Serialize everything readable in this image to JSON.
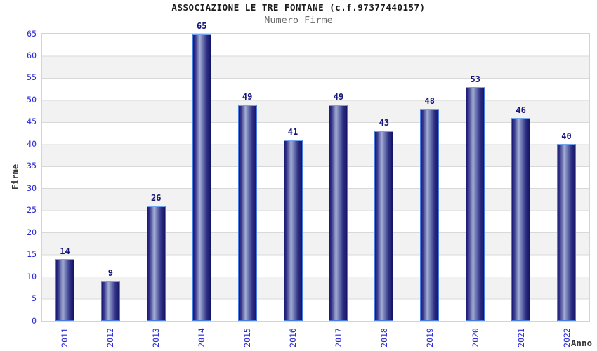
{
  "chart_data": {
    "type": "bar",
    "title": "ASSOCIAZIONE LE TRE FONTANE (c.f.97377440157)",
    "subtitle": "Numero Firme",
    "xlabel": "Anno",
    "ylabel": "Firme",
    "categories": [
      "2011",
      "2012",
      "2013",
      "2014",
      "2015",
      "2016",
      "2017",
      "2018",
      "2019",
      "2020",
      "2021",
      "2022"
    ],
    "values": [
      14,
      9,
      26,
      65,
      49,
      41,
      49,
      43,
      48,
      53,
      46,
      40
    ],
    "ylim": [
      0,
      65
    ],
    "ytick_step": 5,
    "yticks": [
      0,
      5,
      10,
      15,
      20,
      25,
      30,
      35,
      40,
      45,
      50,
      55,
      60,
      65
    ],
    "grid": "horizontal gridlines every 5 units with alternating white/gray bands",
    "legend": "none",
    "value_labels": "above each bar",
    "x_tick_rotation_deg": 90,
    "colors": {
      "title_text": "#1b1b1b",
      "subtitle_text": "#6a6a6a",
      "axis_tick_text": "#2a2ad9",
      "value_label_text": "#15157a",
      "axis_title_text": "#3a3a3a",
      "band_light": "#ffffff",
      "band_dark": "#f2f2f2",
      "gridline": "#d9d9d9",
      "bar_border": "#4a7de0",
      "bar_top_cap": "#74a4ec",
      "bar_gradient_dark": "#191970",
      "bar_gradient_highlight": "#a4aed4"
    }
  }
}
